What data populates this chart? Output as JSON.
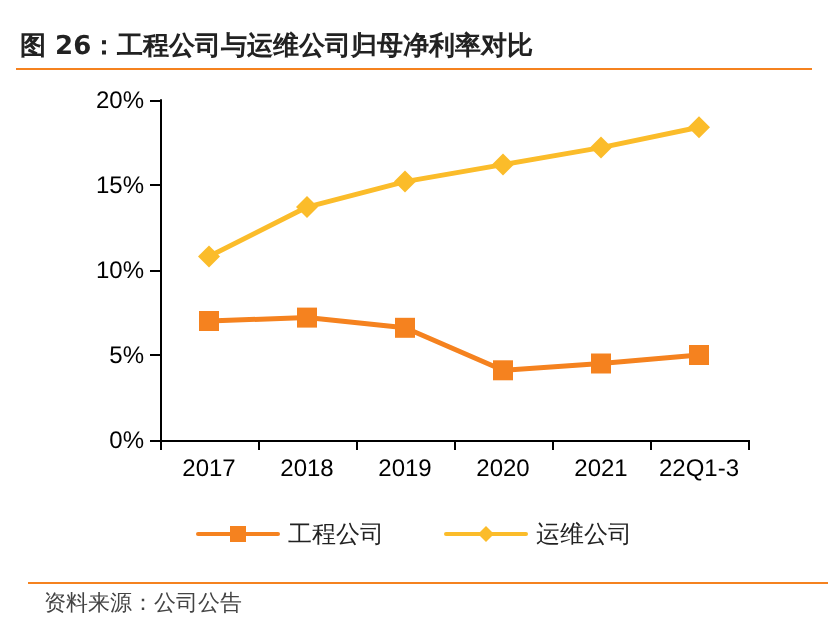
{
  "chart_data": {
    "type": "line",
    "title": "图 26：工程公司与运维公司归母净利率对比",
    "categories": [
      "2017",
      "2018",
      "2019",
      "2020",
      "2021",
      "22Q1-3"
    ],
    "series": [
      {
        "name": "工程公司",
        "color": "#f5821f",
        "marker": "square",
        "values": [
          7.0,
          7.2,
          6.6,
          4.1,
          4.5,
          5.0
        ]
      },
      {
        "name": "运维公司",
        "color": "#fbbc2a",
        "marker": "diamond",
        "values": [
          10.8,
          13.7,
          15.2,
          16.2,
          17.2,
          18.4
        ]
      }
    ],
    "ylim": [
      0,
      20
    ],
    "yticks": [
      {
        "value": 0,
        "label": "0%"
      },
      {
        "value": 5,
        "label": "5%"
      },
      {
        "value": 10,
        "label": "10%"
      },
      {
        "value": 15,
        "label": "15%"
      },
      {
        "value": 20,
        "label": "20%"
      }
    ],
    "grid": false,
    "legend": "bottom",
    "line_style": "solid",
    "annotations": [
      "资料来源：公司公告"
    ]
  }
}
